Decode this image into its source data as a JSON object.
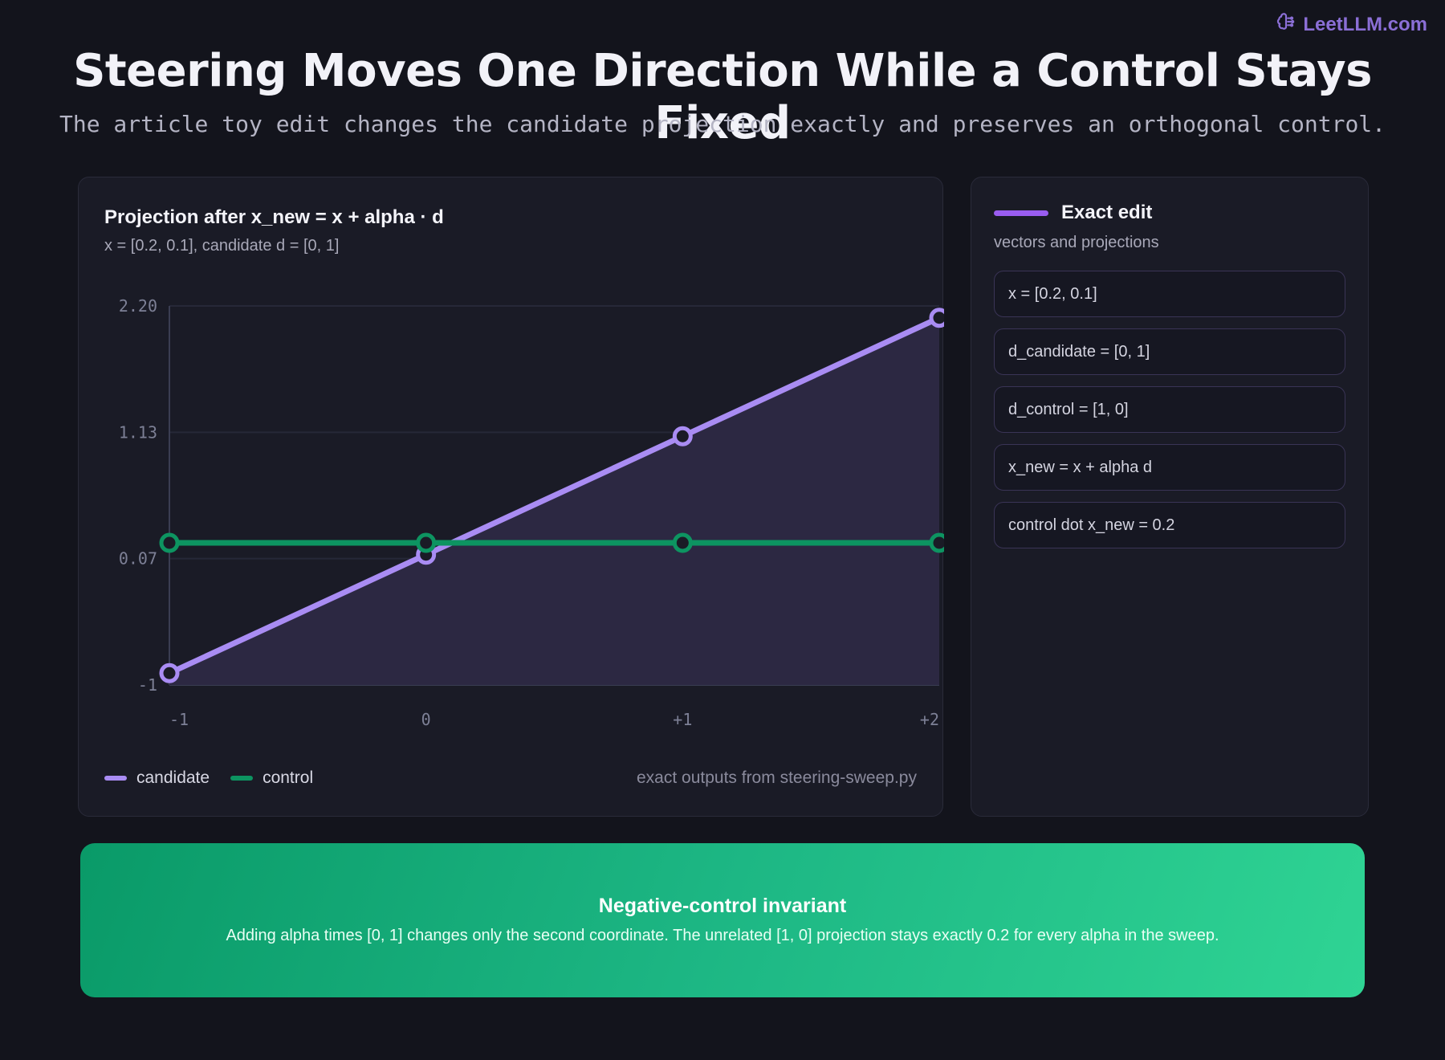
{
  "brand": {
    "label": "LeetLLM.com",
    "icon": "brain-icon"
  },
  "header": {
    "title": "Steering Moves One Direction While a Control Stays Fixed",
    "subtitle": "The article toy edit changes the candidate projection exactly and preserves an orthogonal control."
  },
  "chart_panel": {
    "title": "Projection after x_new = x + alpha · d",
    "subtitle": "x = [0.2, 0.1], candidate d = [0, 1]",
    "footnote": "exact outputs from steering-sweep.py"
  },
  "chart_data": {
    "type": "line",
    "x": [
      "-1",
      "0",
      "+1",
      "+2"
    ],
    "x_values": [
      -1,
      0,
      1,
      2
    ],
    "y_ticks": [
      "-1",
      "0.07",
      "1.13",
      "2.20"
    ],
    "y_tick_values": [
      -1,
      0.0667,
      1.1333,
      2.2
    ],
    "ylim": [
      -1,
      2.2
    ],
    "grid": true,
    "legend_position": "bottom-left",
    "series": [
      {
        "name": "candidate",
        "values": [
          -0.9,
          0.1,
          1.1,
          2.1
        ],
        "color": "#a98cf3",
        "area": true
      },
      {
        "name": "control",
        "values": [
          0.2,
          0.2,
          0.2,
          0.2
        ],
        "color": "#0d9461"
      }
    ]
  },
  "side_panel": {
    "title": "Exact edit",
    "subtitle": "vectors and projections",
    "items": [
      "x = [0.2, 0.1]",
      "d_candidate = [0, 1]",
      "d_control = [1, 0]",
      "x_new = x + alpha d",
      "control dot x_new = 0.2"
    ]
  },
  "banner": {
    "title": "Negative-control invariant",
    "text": "Adding alpha times [0, 1] changes only the second coordinate. The unrelated [1, 0] projection stays exactly 0.2 for every alpha in the sweep."
  }
}
